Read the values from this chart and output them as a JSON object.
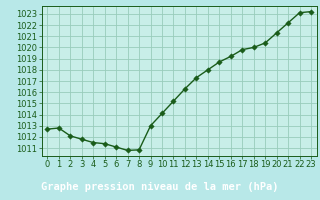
{
  "x": [
    0,
    1,
    2,
    3,
    4,
    5,
    6,
    7,
    8,
    9,
    10,
    11,
    12,
    13,
    14,
    15,
    16,
    17,
    18,
    19,
    20,
    21,
    22,
    23
  ],
  "y": [
    1012.7,
    1012.8,
    1012.1,
    1011.8,
    1011.5,
    1011.4,
    1011.1,
    1010.8,
    1010.85,
    1013.0,
    1014.1,
    1015.2,
    1016.3,
    1017.3,
    1018.0,
    1018.7,
    1019.2,
    1019.8,
    1020.0,
    1020.4,
    1021.3,
    1022.2,
    1023.1,
    1023.2
  ],
  "line_color": "#1a5c1a",
  "marker": "D",
  "marker_size": 2.8,
  "background_color": "#b8e8e8",
  "plot_bg_color": "#c8eee8",
  "grid_color": "#99ccbb",
  "title": "Graphe pression niveau de la mer (hPa)",
  "title_bg_color": "#1a5c1a",
  "title_text_color": "#ffffff",
  "title_fontsize": 7.5,
  "xlabel_ticks": [
    0,
    1,
    2,
    3,
    4,
    5,
    6,
    7,
    8,
    9,
    10,
    11,
    12,
    13,
    14,
    15,
    16,
    17,
    18,
    19,
    20,
    21,
    22,
    23
  ],
  "ytick_min": 1011,
  "ytick_max": 1023,
  "ytick_step": 1,
  "tick_fontsize": 6.0,
  "tick_color": "#1a5c1a",
  "line_width": 1.0,
  "ylim_bottom": 1010.3,
  "ylim_top": 1023.7
}
